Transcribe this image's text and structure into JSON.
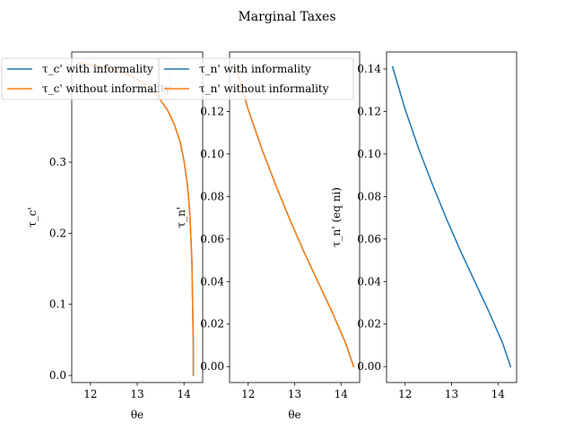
{
  "title": "Marginal Taxes",
  "colors": {
    "series1": "#1f77b4",
    "series2": "#ff7f0e"
  },
  "chart_data": [
    {
      "type": "line",
      "xlabel": "θe",
      "ylabel": "τ_c'",
      "xlim": [
        11.6,
        14.4
      ],
      "ylim": [
        -0.01,
        0.455
      ],
      "xticks": [
        12,
        13,
        14
      ],
      "yticks": [
        0.0,
        0.1,
        0.2,
        0.3
      ],
      "ytick_labels": [
        "0.0",
        "0.1",
        "0.2",
        "0.3"
      ],
      "legend": "top-left",
      "series": [
        {
          "name": "τ_c' with informality",
          "color": "#1f77b4",
          "x": [
            11.73,
            12.0,
            12.3,
            12.6,
            12.9,
            13.2,
            13.45,
            13.65,
            13.8,
            13.92,
            14.0,
            14.06,
            14.1,
            14.13,
            14.15,
            14.17,
            14.18,
            14.19,
            14.2,
            14.2
          ],
          "y": [
            0.44,
            0.437,
            0.433,
            0.428,
            0.42,
            0.408,
            0.392,
            0.373,
            0.352,
            0.328,
            0.302,
            0.275,
            0.25,
            0.22,
            0.19,
            0.16,
            0.12,
            0.08,
            0.04,
            0.0
          ]
        },
        {
          "name": "τ_c' without informality",
          "color": "#ff7f0e",
          "x": [
            11.73,
            12.0,
            12.3,
            12.6,
            12.9,
            13.2,
            13.45,
            13.65,
            13.8,
            13.92,
            14.0,
            14.06,
            14.1,
            14.13,
            14.15,
            14.17,
            14.18,
            14.19,
            14.2,
            14.2
          ],
          "y": [
            0.44,
            0.437,
            0.433,
            0.428,
            0.42,
            0.408,
            0.392,
            0.373,
            0.352,
            0.328,
            0.302,
            0.275,
            0.25,
            0.22,
            0.19,
            0.16,
            0.12,
            0.08,
            0.04,
            0.0
          ]
        }
      ]
    },
    {
      "type": "line",
      "xlabel": "θe",
      "ylabel": "τ_n'",
      "xlim": [
        11.6,
        14.4
      ],
      "ylim": [
        -0.0075,
        0.148
      ],
      "xticks": [
        12,
        13,
        14
      ],
      "yticks": [
        0.0,
        0.02,
        0.04,
        0.06,
        0.08,
        0.1,
        0.12
      ],
      "ytick_labels": [
        "0.00",
        "0.02",
        "0.04",
        "0.06",
        "0.08",
        "0.10",
        "0.12"
      ],
      "legend": "top-left",
      "series": [
        {
          "name": "τ_n' with informality",
          "color": "#1f77b4",
          "x": [
            11.73,
            12.0,
            12.3,
            12.6,
            12.9,
            13.2,
            13.5,
            13.8,
            14.1,
            14.27
          ],
          "y": [
            0.141,
            0.121,
            0.102,
            0.085,
            0.069,
            0.054,
            0.04,
            0.026,
            0.011,
            0.0
          ]
        },
        {
          "name": "τ_n' without informality",
          "color": "#ff7f0e",
          "x": [
            11.73,
            12.0,
            12.3,
            12.6,
            12.9,
            13.2,
            13.5,
            13.8,
            14.1,
            14.27
          ],
          "y": [
            0.141,
            0.121,
            0.102,
            0.085,
            0.069,
            0.054,
            0.04,
            0.026,
            0.011,
            0.0
          ]
        }
      ]
    },
    {
      "type": "line",
      "xlabel": "",
      "ylabel": "τ_n' (eq ni)",
      "xlim": [
        11.6,
        14.4
      ],
      "ylim": [
        -0.0075,
        0.148
      ],
      "xticks": [
        12,
        13,
        14
      ],
      "yticks": [
        0.0,
        0.02,
        0.04,
        0.06,
        0.08,
        0.1,
        0.12,
        0.14
      ],
      "ytick_labels": [
        "0.00",
        "0.02",
        "0.04",
        "0.06",
        "0.08",
        "0.10",
        "0.12",
        "0.14"
      ],
      "legend": "none",
      "series": [
        {
          "color": "#1f77b4",
          "x": [
            11.73,
            12.0,
            12.3,
            12.6,
            12.9,
            13.2,
            13.5,
            13.8,
            14.1,
            14.27
          ],
          "y": [
            0.141,
            0.121,
            0.102,
            0.085,
            0.069,
            0.054,
            0.04,
            0.026,
            0.011,
            0.0
          ]
        }
      ]
    }
  ]
}
